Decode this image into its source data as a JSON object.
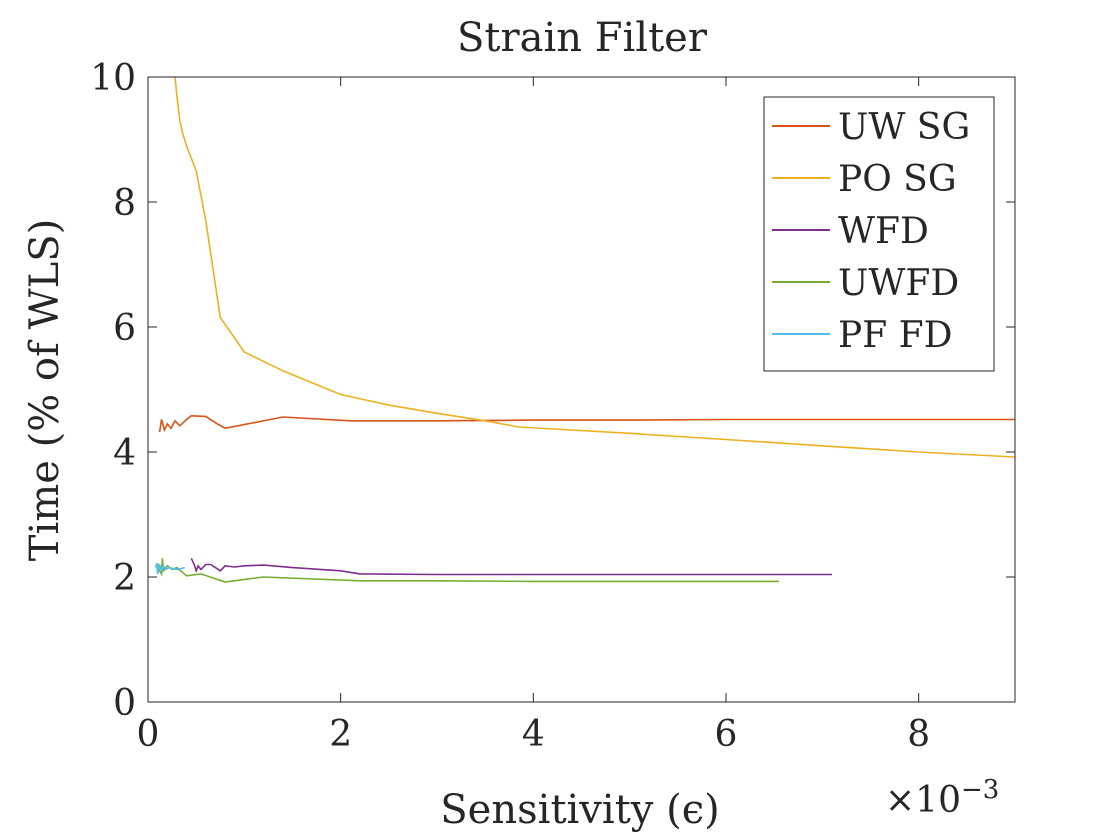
{
  "chart_data": {
    "type": "line",
    "title": "Strain Filter",
    "xlabel": "Sensitivity (ϵ)",
    "ylabel": "Time (% of WLS)",
    "x_multiplier_label": "×10",
    "x_multiplier_exponent": "−3",
    "xlim": [
      0,
      9
    ],
    "ylim": [
      0,
      10
    ],
    "xticks": [
      0,
      2,
      4,
      6,
      8
    ],
    "yticks": [
      0,
      2,
      4,
      6,
      8,
      10
    ],
    "xtick_labels": [
      "0",
      "2",
      "4",
      "6",
      "8"
    ],
    "ytick_labels": [
      "0",
      "2",
      "4",
      "6",
      "8",
      "10"
    ],
    "grid": false,
    "legend_position": "top-right",
    "series": [
      {
        "name": "UW SG",
        "color": "#D95319",
        "points": [
          [
            0.12,
            4.32
          ],
          [
            0.14,
            4.52
          ],
          [
            0.17,
            4.35
          ],
          [
            0.2,
            4.45
          ],
          [
            0.24,
            4.38
          ],
          [
            0.28,
            4.5
          ],
          [
            0.33,
            4.42
          ],
          [
            0.4,
            4.52
          ],
          [
            0.45,
            4.58
          ],
          [
            0.6,
            4.57
          ],
          [
            0.72,
            4.45
          ],
          [
            0.8,
            4.38
          ],
          [
            1.4,
            4.56
          ],
          [
            2.1,
            4.5
          ],
          [
            3.0,
            4.5
          ],
          [
            4.0,
            4.51
          ],
          [
            5.0,
            4.51
          ],
          [
            6.0,
            4.52
          ],
          [
            7.0,
            4.52
          ],
          [
            8.0,
            4.52
          ],
          [
            9.0,
            4.52
          ]
        ]
      },
      {
        "name": "PO SG",
        "color": "#EDB120",
        "points": [
          [
            0.28,
            10.0
          ],
          [
            0.3,
            9.7
          ],
          [
            0.33,
            9.3
          ],
          [
            0.36,
            9.1
          ],
          [
            0.4,
            8.9
          ],
          [
            0.5,
            8.5
          ],
          [
            0.6,
            7.7
          ],
          [
            0.75,
            6.15
          ],
          [
            1.0,
            5.6
          ],
          [
            1.4,
            5.3
          ],
          [
            2.0,
            4.92
          ],
          [
            2.5,
            4.75
          ],
          [
            3.0,
            4.62
          ],
          [
            3.5,
            4.5
          ],
          [
            3.85,
            4.4
          ],
          [
            5.0,
            4.3
          ],
          [
            6.0,
            4.2
          ],
          [
            7.0,
            4.1
          ],
          [
            8.0,
            4.0
          ],
          [
            9.0,
            3.92
          ]
        ]
      },
      {
        "name": "WFD",
        "color": "#7E2F8E",
        "points": [
          [
            0.45,
            2.3
          ],
          [
            0.48,
            2.2
          ],
          [
            0.5,
            2.1
          ],
          [
            0.52,
            2.18
          ],
          [
            0.55,
            2.12
          ],
          [
            0.6,
            2.2
          ],
          [
            0.65,
            2.2
          ],
          [
            0.7,
            2.15
          ],
          [
            0.75,
            2.1
          ],
          [
            0.8,
            2.18
          ],
          [
            0.9,
            2.16
          ],
          [
            1.0,
            2.18
          ],
          [
            1.2,
            2.19
          ],
          [
            1.5,
            2.15
          ],
          [
            2.0,
            2.1
          ],
          [
            2.2,
            2.05
          ],
          [
            3.0,
            2.04
          ],
          [
            4.0,
            2.04
          ],
          [
            4.45,
            2.04
          ],
          [
            5.0,
            2.04
          ],
          [
            6.0,
            2.04
          ],
          [
            7.1,
            2.04
          ]
        ]
      },
      {
        "name": "UWFD",
        "color": "#77AC30",
        "points": [
          [
            0.1,
            2.22
          ],
          [
            0.12,
            2.1
          ],
          [
            0.14,
            2.05
          ],
          [
            0.15,
            2.3
          ],
          [
            0.16,
            2.1
          ],
          [
            0.2,
            2.18
          ],
          [
            0.25,
            2.12
          ],
          [
            0.3,
            2.15
          ],
          [
            0.4,
            2.02
          ],
          [
            0.55,
            2.05
          ],
          [
            0.8,
            1.92
          ],
          [
            1.2,
            2.0
          ],
          [
            2.2,
            1.94
          ],
          [
            3.0,
            1.94
          ],
          [
            4.0,
            1.93
          ],
          [
            5.0,
            1.93
          ],
          [
            6.55,
            1.93
          ]
        ]
      },
      {
        "name": "PF FD",
        "color": "#4DBEEE",
        "points": [
          [
            0.08,
            2.15
          ],
          [
            0.09,
            2.22
          ],
          [
            0.1,
            2.05
          ],
          [
            0.12,
            2.2
          ],
          [
            0.14,
            2.1
          ],
          [
            0.16,
            2.18
          ],
          [
            0.18,
            2.12
          ],
          [
            0.22,
            2.15
          ],
          [
            0.3,
            2.12
          ],
          [
            0.38,
            2.15
          ]
        ]
      }
    ]
  }
}
